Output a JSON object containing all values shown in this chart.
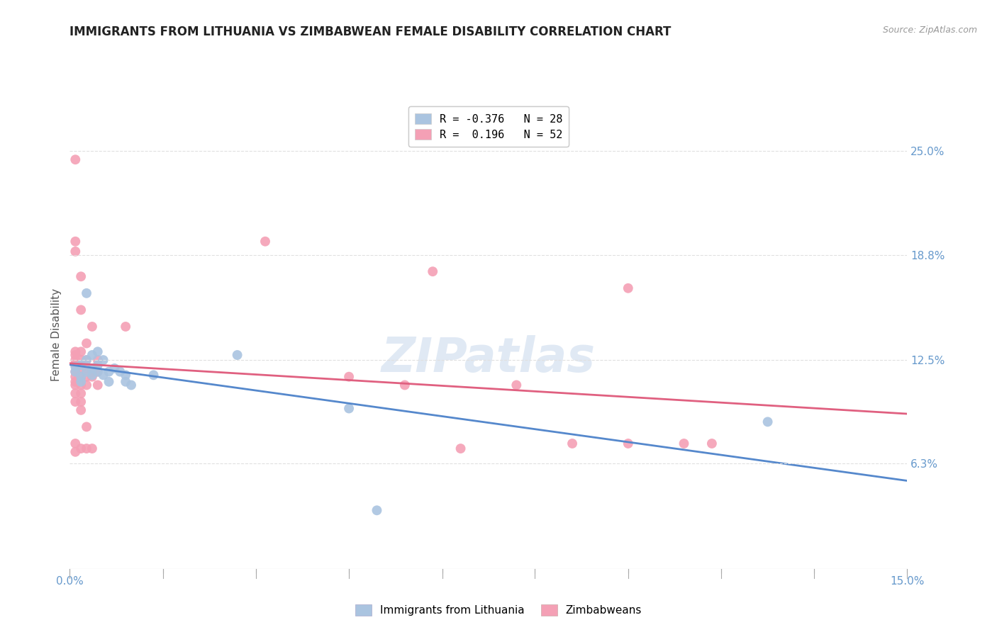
{
  "title": "IMMIGRANTS FROM LITHUANIA VS ZIMBABWEAN FEMALE DISABILITY CORRELATION CHART",
  "source": "Source: ZipAtlas.com",
  "ylabel": "Female Disability",
  "xlim": [
    0.0,
    0.15
  ],
  "ylim": [
    0.0,
    0.28
  ],
  "xtick_labels": [
    "0.0%",
    "",
    "",
    "",
    "",
    "",
    "",
    "",
    "",
    "15.0%"
  ],
  "xtick_positions": [
    0.0,
    0.0167,
    0.0333,
    0.05,
    0.0667,
    0.0833,
    0.1,
    0.1167,
    0.1333,
    0.15
  ],
  "ytick_labels_right": [
    "25.0%",
    "18.8%",
    "12.5%",
    "6.3%"
  ],
  "ytick_positions_right": [
    0.25,
    0.188,
    0.125,
    0.063
  ],
  "watermark": "ZIPatlas",
  "background_color": "#ffffff",
  "grid_color": "#e0e0e0",
  "lithuania_color": "#aac4e0",
  "zimbabwe_color": "#f4a0b5",
  "lithuania_line_color": "#5588cc",
  "zimbabwe_line_color": "#e06080",
  "legend_lith_label": "R = -0.376   N = 28",
  "legend_zimb_label": "R =  0.196   N = 52",
  "bottom_legend_lith": "Immigrants from Lithuania",
  "bottom_legend_zimb": "Zimbabweans",
  "lithuania_points": [
    [
      0.001,
      0.118
    ],
    [
      0.001,
      0.121
    ],
    [
      0.002,
      0.122
    ],
    [
      0.002,
      0.115
    ],
    [
      0.002,
      0.112
    ],
    [
      0.003,
      0.125
    ],
    [
      0.003,
      0.118
    ],
    [
      0.003,
      0.165
    ],
    [
      0.004,
      0.128
    ],
    [
      0.004,
      0.12
    ],
    [
      0.004,
      0.116
    ],
    [
      0.005,
      0.13
    ],
    [
      0.005,
      0.122
    ],
    [
      0.005,
      0.118
    ],
    [
      0.006,
      0.125
    ],
    [
      0.006,
      0.116
    ],
    [
      0.007,
      0.118
    ],
    [
      0.007,
      0.112
    ],
    [
      0.008,
      0.12
    ],
    [
      0.009,
      0.118
    ],
    [
      0.01,
      0.116
    ],
    [
      0.01,
      0.112
    ],
    [
      0.011,
      0.11
    ],
    [
      0.015,
      0.116
    ],
    [
      0.03,
      0.128
    ],
    [
      0.05,
      0.096
    ],
    [
      0.055,
      0.035
    ],
    [
      0.125,
      0.088
    ]
  ],
  "zimbabwe_points": [
    [
      0.001,
      0.245
    ],
    [
      0.001,
      0.196
    ],
    [
      0.001,
      0.19
    ],
    [
      0.001,
      0.13
    ],
    [
      0.001,
      0.128
    ],
    [
      0.001,
      0.125
    ],
    [
      0.001,
      0.122
    ],
    [
      0.001,
      0.118
    ],
    [
      0.001,
      0.115
    ],
    [
      0.001,
      0.112
    ],
    [
      0.001,
      0.11
    ],
    [
      0.001,
      0.105
    ],
    [
      0.001,
      0.1
    ],
    [
      0.001,
      0.075
    ],
    [
      0.001,
      0.07
    ],
    [
      0.002,
      0.175
    ],
    [
      0.002,
      0.155
    ],
    [
      0.002,
      0.13
    ],
    [
      0.002,
      0.125
    ],
    [
      0.002,
      0.12
    ],
    [
      0.002,
      0.115
    ],
    [
      0.002,
      0.11
    ],
    [
      0.002,
      0.105
    ],
    [
      0.002,
      0.1
    ],
    [
      0.002,
      0.095
    ],
    [
      0.002,
      0.072
    ],
    [
      0.003,
      0.135
    ],
    [
      0.003,
      0.125
    ],
    [
      0.003,
      0.12
    ],
    [
      0.003,
      0.115
    ],
    [
      0.003,
      0.11
    ],
    [
      0.003,
      0.085
    ],
    [
      0.003,
      0.072
    ],
    [
      0.004,
      0.145
    ],
    [
      0.004,
      0.118
    ],
    [
      0.004,
      0.115
    ],
    [
      0.004,
      0.072
    ],
    [
      0.005,
      0.125
    ],
    [
      0.005,
      0.118
    ],
    [
      0.005,
      0.11
    ],
    [
      0.01,
      0.145
    ],
    [
      0.035,
      0.196
    ],
    [
      0.05,
      0.115
    ],
    [
      0.06,
      0.11
    ],
    [
      0.065,
      0.178
    ],
    [
      0.07,
      0.072
    ],
    [
      0.08,
      0.11
    ],
    [
      0.09,
      0.075
    ],
    [
      0.1,
      0.075
    ],
    [
      0.1,
      0.168
    ],
    [
      0.11,
      0.075
    ],
    [
      0.115,
      0.075
    ]
  ]
}
